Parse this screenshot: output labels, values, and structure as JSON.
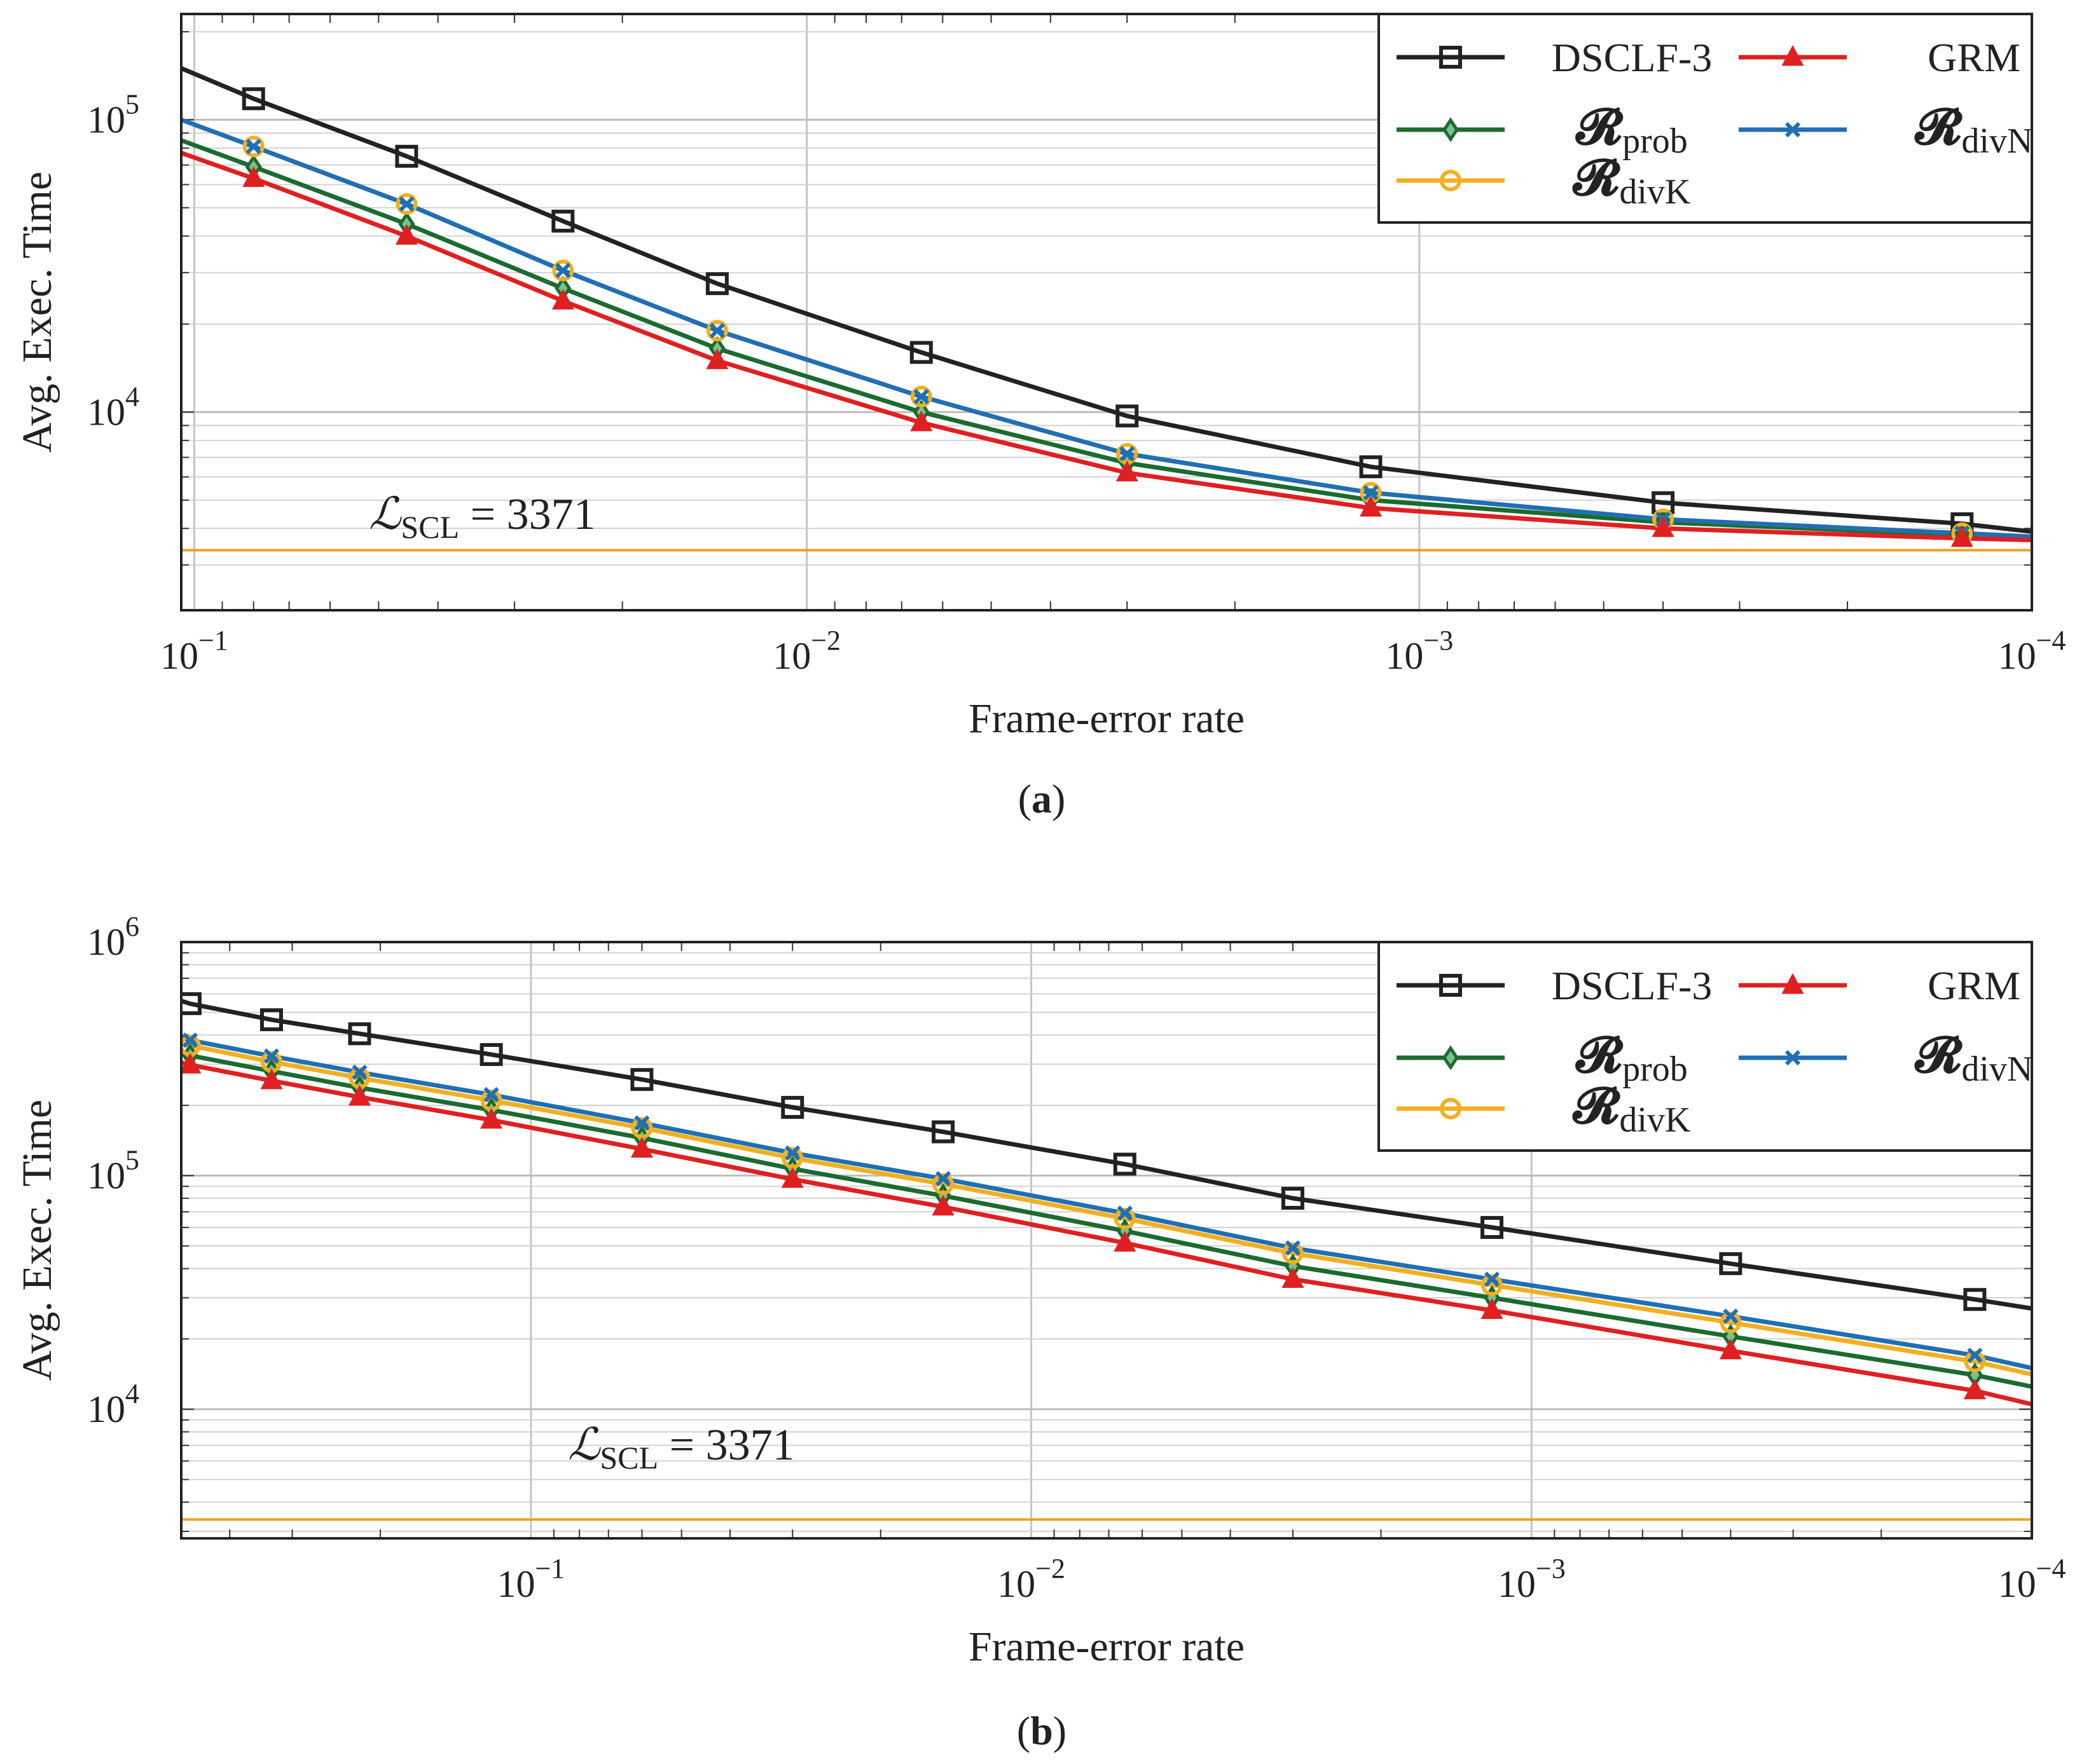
{
  "chart_data": [
    {
      "panel": "a",
      "caption_letter": "a",
      "type": "line",
      "xlabel": "Frame-error rate",
      "ylabel": "Avg. Exec. Time",
      "x_scale": "log",
      "y_scale": "log",
      "x_reversed": true,
      "xlim": [
        0.105,
        0.0001
      ],
      "ylim": [
        2100,
        230000
      ],
      "x_ticks": [
        {
          "value": 0.1,
          "base": "10",
          "exp": "−1"
        },
        {
          "value": 0.01,
          "base": "10",
          "exp": "−2"
        },
        {
          "value": 0.001,
          "base": "10",
          "exp": "−3"
        },
        {
          "value": 0.0001,
          "base": "10",
          "exp": "−4"
        }
      ],
      "y_ticks": [
        {
          "value": 10000,
          "base": "10",
          "exp": "4"
        },
        {
          "value": 100000,
          "base": "10",
          "exp": "5"
        }
      ],
      "grid": true,
      "legend_position": "top-right",
      "reference_line": {
        "value": 3371,
        "symbol": "ℒ",
        "subscript": "SCL",
        "text": " = 3371",
        "color": "#f0a020"
      },
      "series": [
        {
          "name": "DSCLF-3",
          "legend_sub": "",
          "marker": "square",
          "color": "#222222",
          "x": [
            0.105,
            0.08,
            0.045,
            0.025,
            0.014,
            0.0065,
            0.003,
            0.0012,
            0.0004,
            0.00013,
            0.0001
          ],
          "y": [
            150000,
            118000,
            75000,
            45000,
            27500,
            16000,
            9700,
            6500,
            4900,
            4150,
            3900
          ]
        },
        {
          "name": "GRM",
          "legend_sub": "",
          "marker": "triangle",
          "color": "#e02020",
          "x": [
            0.105,
            0.08,
            0.045,
            0.025,
            0.014,
            0.0065,
            0.003,
            0.0012,
            0.0004,
            0.00013,
            0.0001
          ],
          "y": [
            77000,
            63000,
            40000,
            24000,
            15000,
            9200,
            6200,
            4700,
            4000,
            3700,
            3650
          ]
        },
        {
          "name": "𝓡",
          "legend_sub": "prob",
          "marker": "diamond",
          "color": "#1b6b2f",
          "x": [
            0.105,
            0.08,
            0.045,
            0.025,
            0.014,
            0.0065,
            0.003,
            0.0012,
            0.0004,
            0.00013,
            0.0001
          ],
          "y": [
            85000,
            69000,
            44000,
            26500,
            16500,
            10000,
            6700,
            5000,
            4200,
            3800,
            3700
          ]
        },
        {
          "name": "𝓡",
          "legend_sub": "divN",
          "marker": "x",
          "color": "#1f6fb5",
          "x": [
            0.105,
            0.08,
            0.045,
            0.025,
            0.014,
            0.0065,
            0.003,
            0.0012,
            0.0004,
            0.00013,
            0.0001
          ],
          "y": [
            100000,
            81000,
            51500,
            30500,
            19000,
            11300,
            7200,
            5300,
            4300,
            3850,
            3750
          ]
        },
        {
          "name": "𝓡",
          "legend_sub": "divK",
          "marker": "circle",
          "color": "#f0b020",
          "x": [
            0.105,
            0.08,
            0.045,
            0.025,
            0.014,
            0.0065,
            0.003,
            0.0012,
            0.0004,
            0.00013,
            0.0001
          ],
          "y": [
            100000,
            81000,
            51500,
            30500,
            19000,
            11300,
            7200,
            5300,
            4300,
            3850,
            3750
          ]
        }
      ]
    },
    {
      "panel": "b",
      "caption_letter": "b",
      "type": "line",
      "xlabel": "Frame-error rate",
      "ylabel": "Avg. Exec. Time",
      "x_scale": "log",
      "y_scale": "log",
      "x_reversed": true,
      "xlim": [
        0.5,
        0.0001
      ],
      "ylim": [
        2800,
        1000000
      ],
      "x_ticks": [
        {
          "value": 0.1,
          "base": "10",
          "exp": "−1"
        },
        {
          "value": 0.01,
          "base": "10",
          "exp": "−2"
        },
        {
          "value": 0.001,
          "base": "10",
          "exp": "−3"
        },
        {
          "value": 0.0001,
          "base": "10",
          "exp": "−4"
        }
      ],
      "y_ticks": [
        {
          "value": 10000,
          "base": "10",
          "exp": "4"
        },
        {
          "value": 100000,
          "base": "10",
          "exp": "5"
        },
        {
          "value": 1000000,
          "base": "10",
          "exp": "6"
        }
      ],
      "grid": true,
      "legend_position": "top-right",
      "reference_line": {
        "value": 3371,
        "symbol": "ℒ",
        "subscript": "SCL",
        "text": " = 3371",
        "color": "#f0a020"
      },
      "series": [
        {
          "name": "DSCLF-3",
          "legend_sub": "",
          "marker": "square",
          "color": "#222222",
          "x": [
            0.5,
            0.48,
            0.33,
            0.22,
            0.12,
            0.06,
            0.03,
            0.015,
            0.0065,
            0.003,
            0.0012,
            0.0004,
            0.00013,
            0.0001
          ],
          "y": [
            560000,
            545000,
            465000,
            405000,
            330000,
            258000,
            196000,
            154000,
            112000,
            80000,
            60000,
            42000,
            29500,
            27000
          ]
        },
        {
          "name": "GRM",
          "legend_sub": "",
          "marker": "triangle",
          "color": "#e02020",
          "x": [
            0.5,
            0.48,
            0.33,
            0.22,
            0.12,
            0.06,
            0.03,
            0.015,
            0.0065,
            0.003,
            0.0012,
            0.0004,
            0.00013,
            0.0001
          ],
          "y": [
            305000,
            298000,
            255000,
            217000,
            173000,
            130000,
            96500,
            73500,
            51500,
            36000,
            26500,
            17800,
            12000,
            10500
          ]
        },
        {
          "name": "𝓡",
          "legend_sub": "prob",
          "marker": "diamond",
          "color": "#1b6b2f",
          "x": [
            0.5,
            0.48,
            0.33,
            0.22,
            0.12,
            0.06,
            0.03,
            0.015,
            0.0065,
            0.003,
            0.0012,
            0.0004,
            0.00013,
            0.0001
          ],
          "y": [
            335000,
            327000,
            280000,
            238000,
            191000,
            145000,
            107000,
            82000,
            58000,
            41000,
            30000,
            20500,
            14000,
            12500
          ]
        },
        {
          "name": "𝓡",
          "legend_sub": "divN",
          "marker": "x",
          "color": "#1f6fb5",
          "x": [
            0.5,
            0.48,
            0.33,
            0.22,
            0.12,
            0.06,
            0.03,
            0.015,
            0.0065,
            0.003,
            0.0012,
            0.0004,
            0.00013,
            0.0001
          ],
          "y": [
            390000,
            380000,
            325000,
            277000,
            222000,
            168000,
            125000,
            97000,
            69000,
            49000,
            36000,
            25000,
            17000,
            15000
          ]
        },
        {
          "name": "𝓡",
          "legend_sub": "divK",
          "marker": "circle",
          "color": "#f0b020",
          "x": [
            0.5,
            0.48,
            0.33,
            0.22,
            0.12,
            0.06,
            0.03,
            0.015,
            0.0065,
            0.003,
            0.0012,
            0.0004,
            0.00013,
            0.0001
          ],
          "y": [
            368000,
            360000,
            307000,
            262000,
            210000,
            160000,
            119000,
            92000,
            65500,
            46500,
            34000,
            23500,
            16000,
            14100
          ]
        }
      ]
    }
  ]
}
